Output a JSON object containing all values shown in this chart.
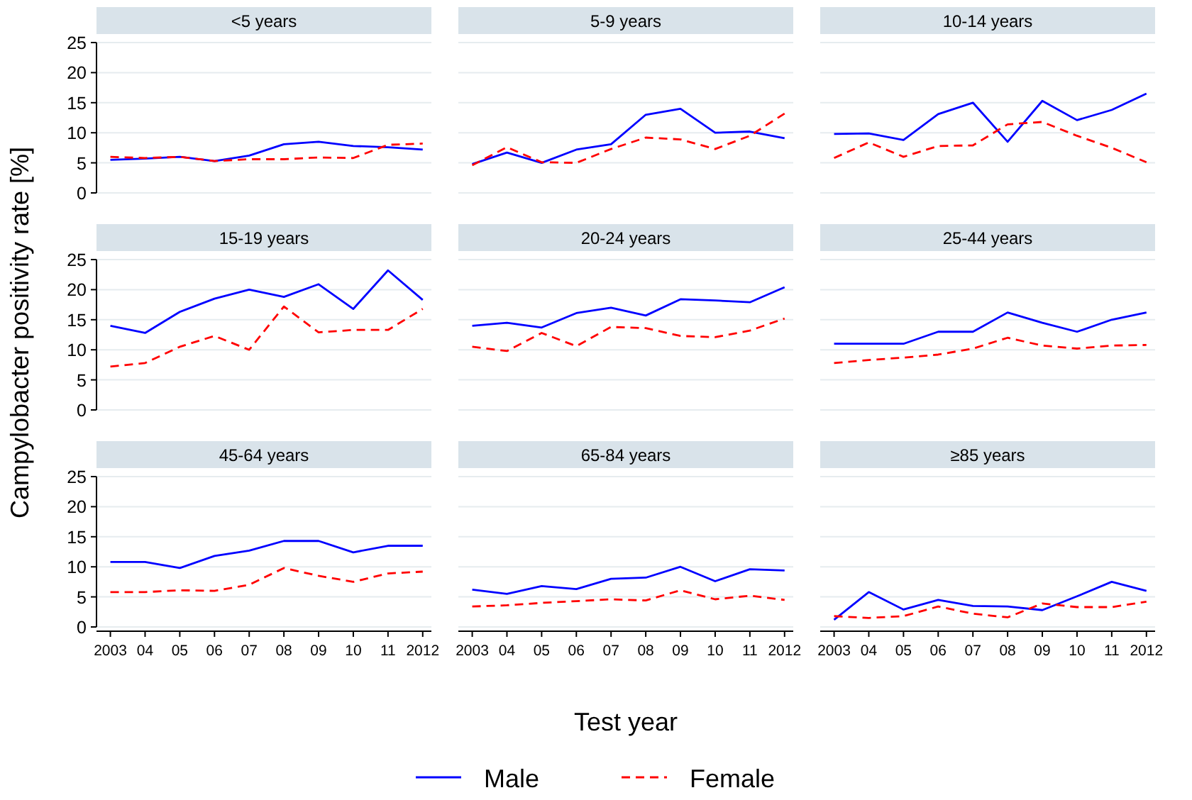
{
  "chart_data": [
    {
      "type": "line",
      "title": "<5 years",
      "x": [
        2003,
        2004,
        2005,
        2006,
        2007,
        2008,
        2009,
        2010,
        2011,
        2012
      ],
      "xlim": [
        2002.6,
        2012.25
      ],
      "ylim": [
        0,
        25
      ],
      "yticks": [
        0,
        5,
        10,
        15,
        20,
        25
      ],
      "grid": "y",
      "tick_labels": "y",
      "series": [
        {
          "color": "#0000ff",
          "line_style": "solid",
          "values": [
            5.5,
            5.7,
            6,
            5.3,
            6.2,
            8.1,
            8.5,
            7.8,
            7.6,
            7.2
          ]
        },
        {
          "color": "#ff0000",
          "line_style": "dashed",
          "values": [
            6,
            5.8,
            6,
            5.3,
            5.6,
            5.6,
            5.9,
            5.8,
            8,
            8.2
          ]
        }
      ]
    },
    {
      "type": "line",
      "title": "5-9 years",
      "x": [
        2003,
        2004,
        2005,
        2006,
        2007,
        2008,
        2009,
        2010,
        2011,
        2012
      ],
      "xlim": [
        2002.6,
        2012.25
      ],
      "ylim": [
        0,
        25
      ],
      "yticks": [
        0,
        5,
        10,
        15,
        20,
        25
      ],
      "grid": "y",
      "tick_labels": false,
      "series": [
        {
          "color": "#0000ff",
          "line_style": "solid",
          "values": [
            4.8,
            6.7,
            5,
            7.2,
            8.1,
            13,
            14,
            10,
            10.2,
            9.1
          ]
        },
        {
          "color": "#ff0000",
          "line_style": "dashed",
          "values": [
            4.6,
            7.6,
            5.1,
            5,
            7.3,
            9.2,
            8.9,
            7.3,
            9.5,
            13.2
          ]
        }
      ]
    },
    {
      "type": "line",
      "title": "10-14 years",
      "x": [
        2003,
        2004,
        2005,
        2006,
        2007,
        2008,
        2009,
        2010,
        2011,
        2012
      ],
      "xlim": [
        2002.6,
        2012.25
      ],
      "ylim": [
        0,
        25
      ],
      "yticks": [
        0,
        5,
        10,
        15,
        20,
        25
      ],
      "grid": "y",
      "tick_labels": false,
      "series": [
        {
          "color": "#0000ff",
          "line_style": "solid",
          "values": [
            9.8,
            9.9,
            8.8,
            13.1,
            15,
            8.5,
            15.3,
            12.1,
            13.8,
            16.5
          ]
        },
        {
          "color": "#ff0000",
          "line_style": "dashed",
          "values": [
            5.8,
            8.4,
            6,
            7.8,
            7.9,
            11.4,
            11.8,
            9.5,
            7.5,
            5.1
          ]
        }
      ]
    },
    {
      "type": "line",
      "title": "15-19 years",
      "ylabel": "Campylobacter positivity rate [%]",
      "x": [
        2003,
        2004,
        2005,
        2006,
        2007,
        2008,
        2009,
        2010,
        2011,
        2012
      ],
      "xlim": [
        2002.6,
        2012.25
      ],
      "ylim": [
        0,
        25
      ],
      "yticks": [
        0,
        5,
        10,
        15,
        20,
        25
      ],
      "grid": "y",
      "tick_labels": "y",
      "series": [
        {
          "color": "#0000ff",
          "line_style": "solid",
          "values": [
            14,
            12.8,
            16.3,
            18.5,
            20,
            18.8,
            20.9,
            16.8,
            23.2,
            18.3
          ]
        },
        {
          "color": "#ff0000",
          "line_style": "dashed",
          "values": [
            7.2,
            7.8,
            10.5,
            12.3,
            10,
            17.2,
            12.9,
            13.3,
            13.3,
            16.8
          ]
        }
      ]
    },
    {
      "type": "line",
      "title": "20-24 years",
      "x": [
        2003,
        2004,
        2005,
        2006,
        2007,
        2008,
        2009,
        2010,
        2011,
        2012
      ],
      "xlim": [
        2002.6,
        2012.25
      ],
      "ylim": [
        0,
        25
      ],
      "yticks": [
        0,
        5,
        10,
        15,
        20,
        25
      ],
      "grid": "y",
      "tick_labels": false,
      "series": [
        {
          "color": "#0000ff",
          "line_style": "solid",
          "values": [
            14,
            14.5,
            13.7,
            16.1,
            17,
            15.7,
            18.4,
            18.2,
            17.9,
            20.4
          ]
        },
        {
          "color": "#ff0000",
          "line_style": "dashed",
          "values": [
            10.5,
            9.8,
            12.8,
            10.6,
            13.8,
            13.6,
            12.3,
            12.1,
            13.2,
            15.2
          ]
        }
      ]
    },
    {
      "type": "line",
      "title": "25-44 years",
      "x": [
        2003,
        2004,
        2005,
        2006,
        2007,
        2008,
        2009,
        2010,
        2011,
        2012
      ],
      "xlim": [
        2002.6,
        2012.25
      ],
      "ylim": [
        0,
        25
      ],
      "yticks": [
        0,
        5,
        10,
        15,
        20,
        25
      ],
      "grid": "y",
      "tick_labels": false,
      "series": [
        {
          "color": "#0000ff",
          "line_style": "solid",
          "values": [
            11,
            11,
            11,
            13,
            13,
            16.2,
            14.5,
            13,
            15,
            16.2
          ]
        },
        {
          "color": "#ff0000",
          "line_style": "dashed",
          "values": [
            7.8,
            8.3,
            8.7,
            9.2,
            10.2,
            12,
            10.7,
            10.2,
            10.7,
            10.8
          ]
        }
      ]
    },
    {
      "type": "line",
      "title": "45-64 years",
      "x": [
        2003,
        2004,
        2005,
        2006,
        2007,
        2008,
        2009,
        2010,
        2011,
        2012
      ],
      "xlim": [
        2002.6,
        2012.25
      ],
      "xticks": [
        {
          "value": 2003,
          "label": "2003"
        },
        {
          "value": 2004,
          "label": "04"
        },
        {
          "value": 2005,
          "label": "05"
        },
        {
          "value": 2006,
          "label": "06"
        },
        {
          "value": 2007,
          "label": "07"
        },
        {
          "value": 2008,
          "label": "08"
        },
        {
          "value": 2009,
          "label": "09"
        },
        {
          "value": 2010,
          "label": "10"
        },
        {
          "value": 2011,
          "label": "11"
        },
        {
          "value": 2012,
          "label": "2012"
        }
      ],
      "ylim": [
        0,
        25
      ],
      "yticks": [
        0,
        5,
        10,
        15,
        20,
        25
      ],
      "grid": "y",
      "series": [
        {
          "color": "#0000ff",
          "line_style": "solid",
          "values": [
            10.8,
            10.8,
            9.8,
            11.8,
            12.7,
            14.3,
            14.3,
            12.4,
            13.5,
            13.5
          ]
        },
        {
          "color": "#ff0000",
          "line_style": "dashed",
          "values": [
            5.8,
            5.8,
            6.1,
            6,
            7,
            9.8,
            8.5,
            7.5,
            8.9,
            9.2
          ]
        }
      ]
    },
    {
      "type": "line",
      "title": "65-84 years",
      "xlabel": "Test year",
      "legend": "bottom",
      "x": [
        2003,
        2004,
        2005,
        2006,
        2007,
        2008,
        2009,
        2010,
        2011,
        2012
      ],
      "xlim": [
        2002.6,
        2012.25
      ],
      "xticks": [
        {
          "value": 2003,
          "label": "2003"
        },
        {
          "value": 2004,
          "label": "04"
        },
        {
          "value": 2005,
          "label": "05"
        },
        {
          "value": 2006,
          "label": "06"
        },
        {
          "value": 2007,
          "label": "07"
        },
        {
          "value": 2008,
          "label": "08"
        },
        {
          "value": 2009,
          "label": "09"
        },
        {
          "value": 2010,
          "label": "10"
        },
        {
          "value": 2011,
          "label": "11"
        },
        {
          "value": 2012,
          "label": "2012"
        }
      ],
      "ylim": [
        0,
        25
      ],
      "yticks": [
        0,
        5,
        10,
        15,
        20,
        25
      ],
      "grid": "y",
      "tick_labels": "x",
      "series": [
        {
          "name": "Male",
          "color": "#0000ff",
          "line_style": "solid",
          "values": [
            6.2,
            5.5,
            6.8,
            6.3,
            8,
            8.2,
            10,
            7.6,
            9.6,
            9.4
          ]
        },
        {
          "name": "Female",
          "color": "#ff0000",
          "line_style": "dashed",
          "values": [
            3.4,
            3.6,
            4,
            4.3,
            4.6,
            4.4,
            6.1,
            4.6,
            5.2,
            4.5
          ]
        }
      ]
    },
    {
      "type": "line",
      "title": "≥85 years",
      "x": [
        2003,
        2004,
        2005,
        2006,
        2007,
        2008,
        2009,
        2010,
        2011,
        2012
      ],
      "xlim": [
        2002.6,
        2012.25
      ],
      "xticks": [
        {
          "value": 2003,
          "label": "2003"
        },
        {
          "value": 2004,
          "label": "04"
        },
        {
          "value": 2005,
          "label": "05"
        },
        {
          "value": 2006,
          "label": "06"
        },
        {
          "value": 2007,
          "label": "07"
        },
        {
          "value": 2008,
          "label": "08"
        },
        {
          "value": 2009,
          "label": "09"
        },
        {
          "value": 2010,
          "label": "10"
        },
        {
          "value": 2011,
          "label": "11"
        },
        {
          "value": 2012,
          "label": "2012"
        }
      ],
      "ylim": [
        0,
        25
      ],
      "yticks": [
        0,
        5,
        10,
        15,
        20,
        25
      ],
      "grid": "y",
      "tick_labels": "x",
      "series": [
        {
          "color": "#0000ff",
          "line_style": "solid",
          "values": [
            1.2,
            5.8,
            2.9,
            4.5,
            3.5,
            3.4,
            2.8,
            5.1,
            7.5,
            6
          ]
        },
        {
          "color": "#ff0000",
          "line_style": "dashed",
          "values": [
            1.8,
            1.5,
            1.8,
            3.4,
            2.2,
            1.6,
            3.9,
            3.3,
            3.3,
            4.2
          ]
        }
      ]
    }
  ]
}
